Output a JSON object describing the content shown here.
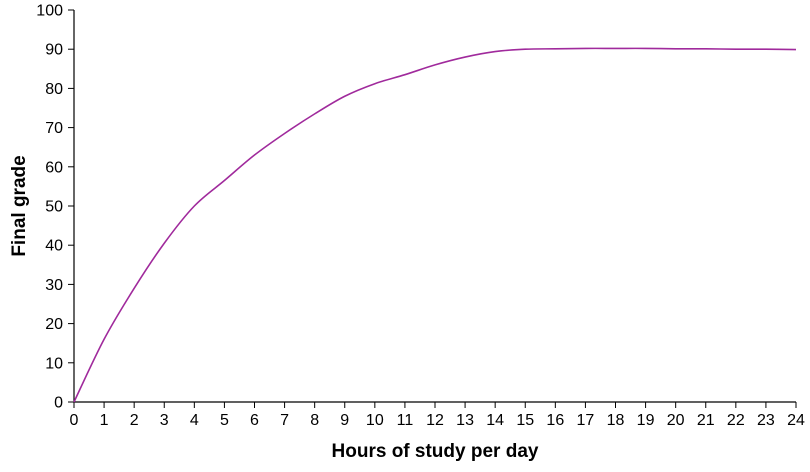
{
  "chart_data": {
    "type": "line",
    "title": "",
    "xlabel": "Hours of study per day",
    "ylabel": "Final grade",
    "xlim": [
      0,
      24
    ],
    "ylim": [
      0,
      100
    ],
    "xticks": [
      0,
      1,
      2,
      3,
      4,
      5,
      6,
      7,
      8,
      9,
      10,
      11,
      12,
      13,
      14,
      15,
      16,
      17,
      18,
      19,
      20,
      21,
      22,
      23,
      24
    ],
    "yticks": [
      0,
      10,
      20,
      30,
      40,
      50,
      60,
      70,
      80,
      90,
      100
    ],
    "grid": false,
    "legend": "none",
    "series": [
      {
        "color": "#a02a9c",
        "x": [
          0,
          1,
          2,
          3,
          4,
          5,
          6,
          7,
          8,
          9,
          10,
          11,
          12,
          13,
          14,
          15,
          16,
          17,
          18,
          19,
          20,
          21,
          22,
          23,
          24
        ],
        "y": [
          0,
          16,
          29,
          40.5,
          50,
          56.5,
          63,
          68.5,
          73.5,
          78,
          81.2,
          83.5,
          86,
          88,
          89.4,
          90,
          90.1,
          90.2,
          90.2,
          90.2,
          90.1,
          90.1,
          90,
          90,
          89.9
        ]
      }
    ]
  }
}
